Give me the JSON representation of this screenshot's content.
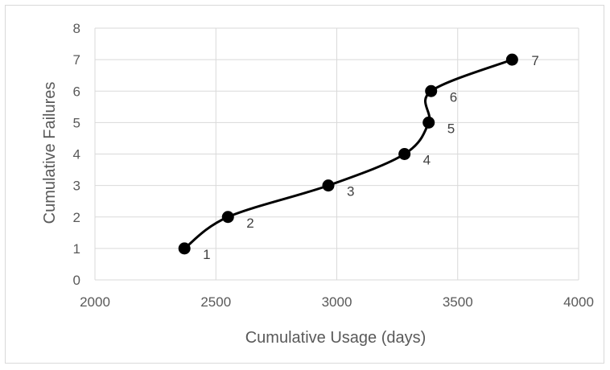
{
  "chart_data": {
    "type": "scatter",
    "xlabel": "Cumulative Usage (days)",
    "ylabel": "Cumulative  Failures",
    "xlim": [
      2000,
      4000
    ],
    "ylim": [
      0,
      8
    ],
    "x_ticks": [
      2000,
      2500,
      3000,
      3500,
      4000
    ],
    "y_ticks": [
      0,
      1,
      2,
      3,
      4,
      5,
      6,
      7,
      8
    ],
    "grid": true,
    "smoothed_line": true,
    "line_color": "#000000",
    "marker_color": "#000000",
    "points": [
      {
        "x": 2370,
        "y": 1,
        "label": "1"
      },
      {
        "x": 2550,
        "y": 2,
        "label": "2"
      },
      {
        "x": 2965,
        "y": 3,
        "label": "3"
      },
      {
        "x": 3280,
        "y": 4,
        "label": "4"
      },
      {
        "x": 3380,
        "y": 5,
        "label": "5"
      },
      {
        "x": 3390,
        "y": 6,
        "label": "6"
      },
      {
        "x": 3725,
        "y": 7,
        "label": "7"
      }
    ]
  }
}
